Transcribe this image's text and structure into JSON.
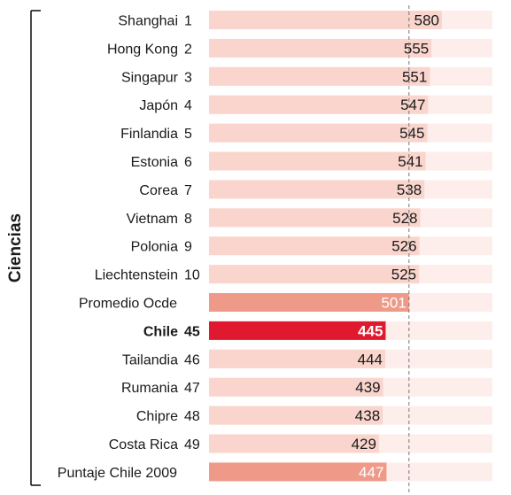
{
  "chart_data": {
    "type": "bar",
    "orientation": "horizontal",
    "ylabel": "Ciencias",
    "categories": [
      "Shanghai",
      "Hong Kong",
      "Singapur",
      "Japón",
      "Finlandia",
      "Estonia",
      "Corea",
      "Vietnam",
      "Polonia",
      "Liechtenstein",
      "Promedio Ocde",
      "Chile",
      "Tailandia",
      "Rumania",
      "Chipre",
      "Costa Rica",
      "Puntaje Chile 2009"
    ],
    "ranks": [
      "1",
      "2",
      "3",
      "4",
      "5",
      "6",
      "7",
      "8",
      "9",
      "10",
      "",
      "45",
      "46",
      "47",
      "48",
      "49",
      ""
    ],
    "values": [
      580,
      555,
      551,
      547,
      545,
      541,
      538,
      528,
      526,
      525,
      501,
      445,
      444,
      439,
      438,
      429,
      447
    ],
    "highlight": [
      "normal",
      "normal",
      "normal",
      "normal",
      "normal",
      "normal",
      "normal",
      "normal",
      "normal",
      "normal",
      "average",
      "chile",
      "normal",
      "normal",
      "normal",
      "normal",
      "average"
    ],
    "reference_value": 501,
    "axis_scale": {
      "value_min": 444,
      "value_max": 580
    },
    "colors": {
      "bar": "#f9d5cd",
      "track": "#fdeeeb",
      "average": "#ef9a89",
      "chile": "#e0192e",
      "text": "#1a1a1a",
      "white_label": "#ffffff",
      "reference_line": "#777777"
    }
  }
}
